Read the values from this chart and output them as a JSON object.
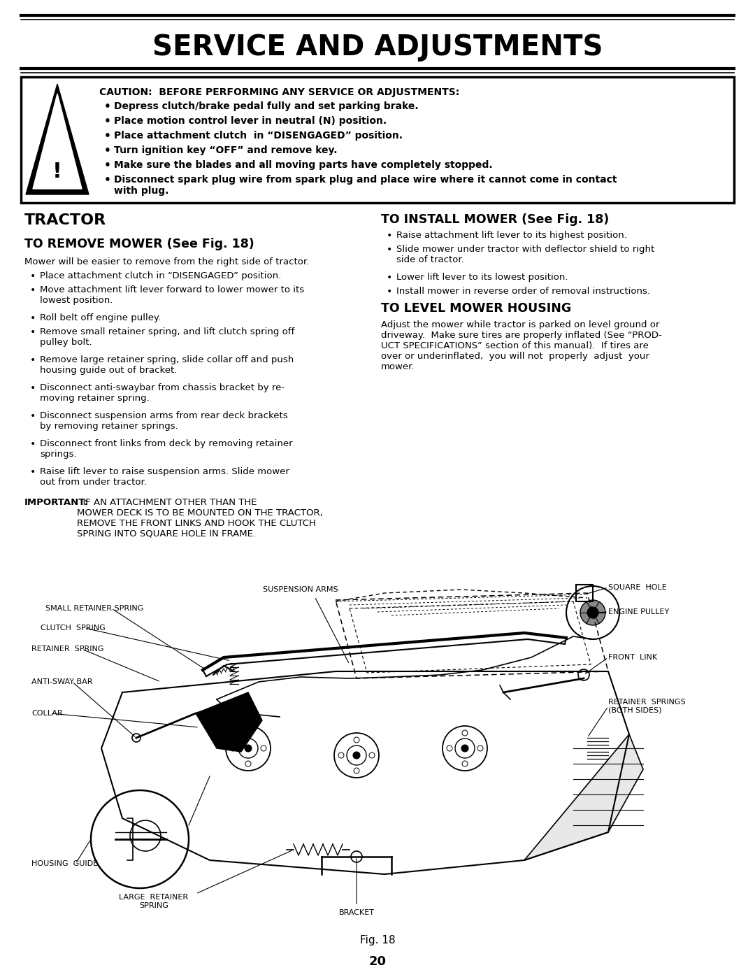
{
  "title": "SERVICE AND ADJUSTMENTS",
  "bg_color": "#ffffff",
  "caution_title": "CAUTION:  BEFORE PERFORMING ANY SERVICE OR ADJUSTMENTS:",
  "caution_bullets": [
    "Depress clutch/brake pedal fully and set parking brake.",
    "Place motion control lever in neutral (N) position.",
    "Place attachment clutch  in “DISENGAGED” position.",
    "Turn ignition key “OFF” and remove key.",
    "Make sure the blades and all moving parts have completely stopped.",
    "Disconnect spark plug wire from spark plug and place wire where it cannot come in contact\nwith plug."
  ],
  "left_col_header": "TRACTOR",
  "remove_header": "TO REMOVE MOWER (See Fig. 18)",
  "remove_intro": "Mower will be easier to remove from the right side of tractor.",
  "remove_bullets": [
    "Place attachment clutch in “DISENGAGED” position.",
    "Move attachment lift lever forward to lower mower to its\nlowest position.",
    "Roll belt off engine pulley.",
    "Remove small retainer spring, and lift clutch spring off\npulley bolt.",
    "Remove large retainer spring, slide collar off and push\nhousing guide out of bracket.",
    "Disconnect anti-swaybar from chassis bracket by re-\nmoving retainer spring.",
    "Disconnect suspension arms from rear deck brackets\nby removing retainer springs.",
    "Disconnect front links from deck by removing retainer\nsprings.",
    "Raise lift lever to raise suspension arms. Slide mower\nout from under tractor."
  ],
  "important_text_bold": "IMPORTANT:",
  "important_text_rest": "  IF AN ATTACHMENT OTHER THAN THE\nMOWER DECK IS TO BE MOUNTED ON THE TRACTOR,\nREMOVE THE FRONT LINKS AND HOOK THE CLUTCH\nSPRING INTO SQUARE HOLE IN FRAME.",
  "install_header": "TO INSTALL MOWER (See Fig. 18)",
  "install_bullets": [
    "Raise attachment lift lever to its highest position.",
    "Slide mower under tractor with deflector shield to right\nside of tractor.",
    "Lower lift lever to its lowest position.",
    "Install mower in reverse order of removal instructions."
  ],
  "level_header": "TO LEVEL MOWER HOUSING",
  "level_text": "Adjust the mower while tractor is parked on level ground or\ndriveway.  Make sure tires are properly inflated (See “PROD-\nUCT SPECIFICATIONS” section of this manual).  If tires are\nover or underinflated,  you will not  properly  adjust  your\nmower.",
  "fig_caption": "Fig. 18",
  "page_number": "20"
}
